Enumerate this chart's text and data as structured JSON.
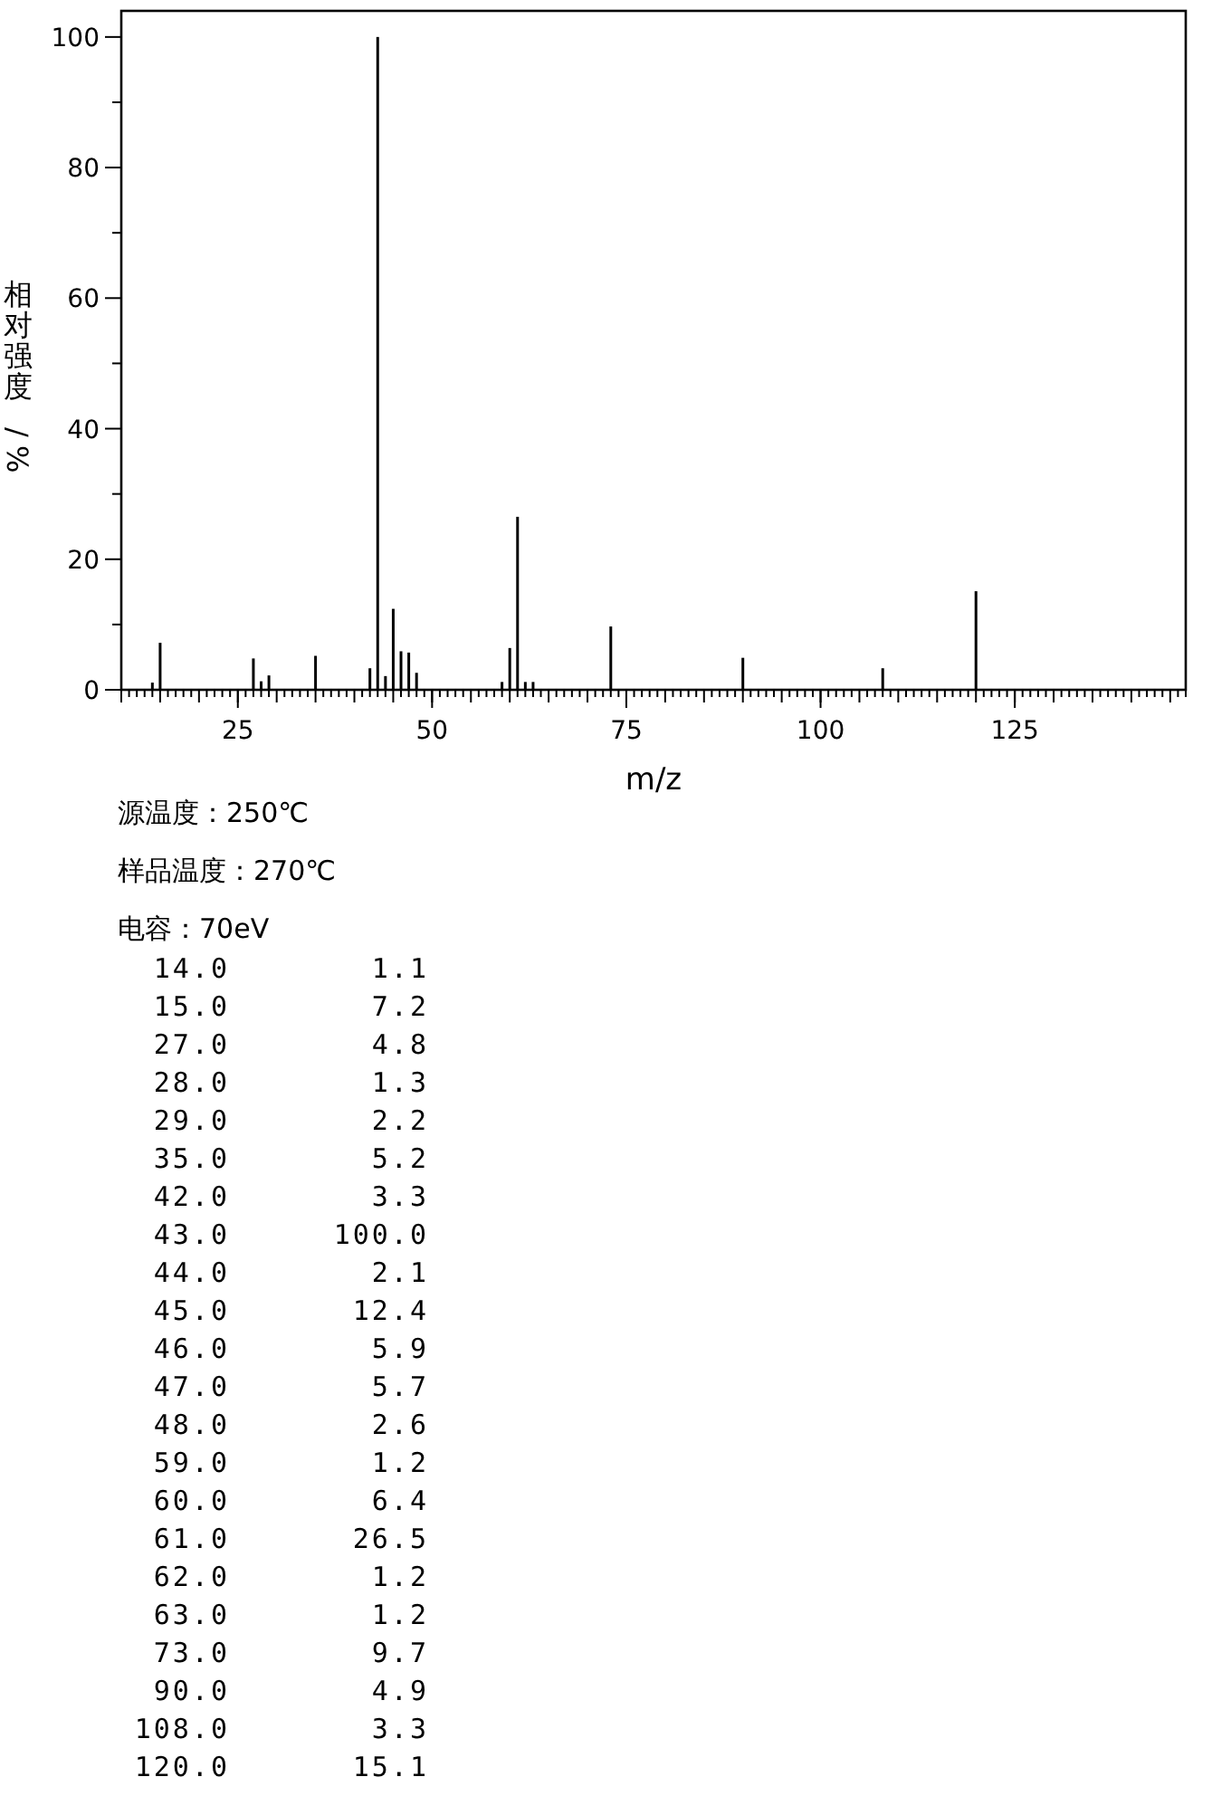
{
  "chart_data": {
    "type": "bar",
    "xlabel": "m/z",
    "ylabel": "相对强度/%",
    "annotations": [
      "源温度：250℃",
      "样品温度：270℃",
      "电容：70eV",
      "14.0",
      "1.1",
      "15.0",
      "7.2",
      "27.0",
      "4.8",
      "28.0",
      "1.3",
      "29.0",
      "2.2",
      "35.0",
      "5.2",
      "42.0",
      "3.3",
      "43.0",
      "100.0",
      "44.0",
      "2.1",
      "45.0",
      "12.4",
      "46.0",
      "5.9",
      "47.0",
      "5.7",
      "48.0",
      "2.6",
      "59.0",
      "1.2",
      "60.0",
      "6.4",
      "61.0",
      "26.5",
      "62.0",
      "1.2",
      "63.0",
      "1.2",
      "73.0",
      "9.7",
      "90.0",
      "4.9",
      "108.0",
      "3.3",
      "120.0",
      "15.1"
    ],
    "x": [
      14,
      15,
      27,
      28,
      29,
      35,
      42,
      43,
      44,
      45,
      46,
      47,
      48,
      59,
      60,
      61,
      62,
      63,
      73,
      90,
      108,
      120
    ],
    "values": [
      1.1,
      7.2,
      4.8,
      1.3,
      2.2,
      5.2,
      3.3,
      100.0,
      2.1,
      12.4,
      5.9,
      5.7,
      2.6,
      1.2,
      6.4,
      26.5,
      1.2,
      1.2,
      9.7,
      4.9,
      3.3,
      15.1
    ],
    "color": "#000000",
    "xlim": [
      10,
      147
    ],
    "xticks": [
      25,
      50,
      75,
      100,
      125
    ],
    "ylim": [
      0,
      104
    ],
    "yticks": [
      0,
      {
        "value": 10,
        "label": null
      },
      20,
      {
        "value": 30,
        "label": null
      },
      40,
      {
        "value": 50,
        "label": null
      },
      60,
      {
        "value": 70,
        "label": null
      },
      80,
      {
        "value": 90,
        "label": null
      },
      100
    ]
  }
}
